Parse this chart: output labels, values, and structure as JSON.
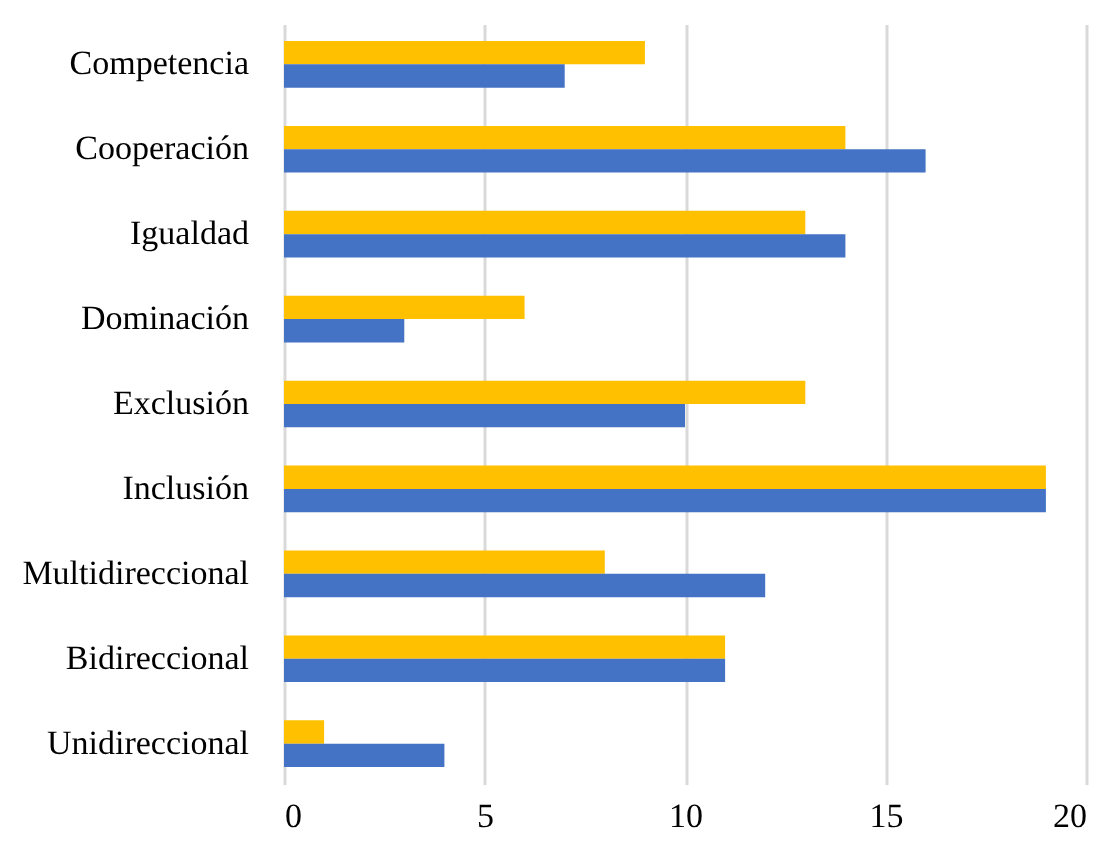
{
  "chart_data": {
    "type": "bar",
    "orientation": "horizontal",
    "categories": [
      "Competencia",
      "Cooperación",
      "Igualdad",
      "Dominación",
      "Exclusión",
      "Inclusión",
      "Multidireccional",
      "Bidireccional",
      "Unidireccional"
    ],
    "series": [
      {
        "color": "#ffc000",
        "values": [
          9,
          14,
          13,
          6,
          13,
          19,
          8,
          11,
          1
        ]
      },
      {
        "color": "#4472c4",
        "values": [
          7,
          16,
          14,
          3,
          10,
          19,
          12,
          11,
          4
        ]
      }
    ],
    "xlim": [
      0,
      20
    ],
    "xticks": [
      0,
      5,
      10,
      15,
      20
    ],
    "grid": "x",
    "legend": false
  }
}
